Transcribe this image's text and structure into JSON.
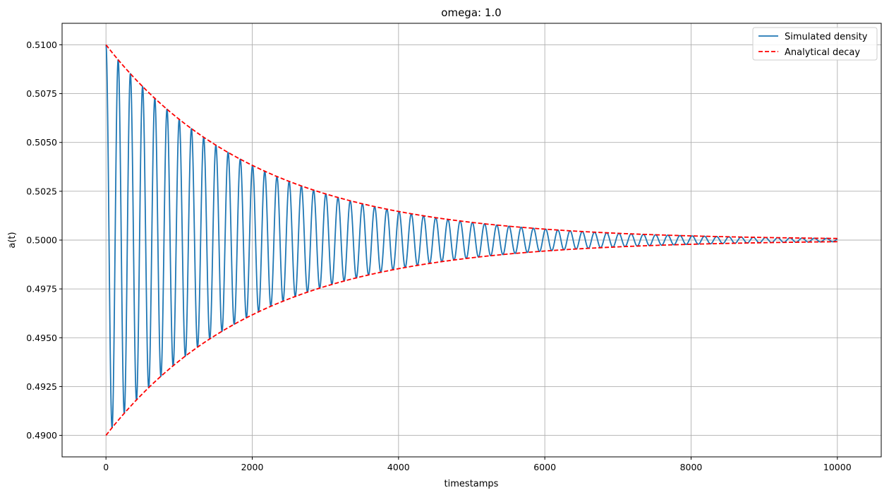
{
  "chart_data": {
    "type": "line",
    "title": "omega: 1.0",
    "xlabel": "timestamps",
    "ylabel": "a(t)",
    "xlim": [
      -600,
      10600
    ],
    "ylim": [
      0.4889,
      0.5111
    ],
    "xticks": [
      0,
      2000,
      4000,
      6000,
      8000,
      10000
    ],
    "xtick_labels": [
      "0",
      "2000",
      "4000",
      "6000",
      "8000",
      "10000"
    ],
    "yticks": [
      0.49,
      0.4925,
      0.495,
      0.4975,
      0.5,
      0.5025,
      0.505,
      0.5075,
      0.51
    ],
    "ytick_labels": [
      "0.4900",
      "0.4925",
      "0.4950",
      "0.4975",
      "0.5000",
      "0.5025",
      "0.5050",
      "0.5075",
      "0.5100"
    ],
    "grid": true,
    "legend_position": "top-right",
    "colors": {
      "simulated": "#1f77b4",
      "analytical": "#ff0000",
      "grid": "#b0b0b0",
      "axes": "#000000"
    },
    "series": [
      {
        "name": "Simulated density",
        "style": "solid",
        "model": {
          "base": 0.5,
          "amplitude": 0.01,
          "decay_rate": 0.00048,
          "period": 167,
          "phase": "cosine"
        },
        "peaks": [
          {
            "x": 0,
            "y": 0.51
          },
          {
            "x": 167,
            "y": 0.5092
          },
          {
            "x": 334,
            "y": 0.5085
          },
          {
            "x": 501,
            "y": 0.5079
          },
          {
            "x": 668,
            "y": 0.5072
          },
          {
            "x": 835,
            "y": 0.5067
          },
          {
            "x": 1002,
            "y": 0.5062
          },
          {
            "x": 1500,
            "y": 0.5049
          },
          {
            "x": 2000,
            "y": 0.5038
          },
          {
            "x": 3000,
            "y": 0.5024
          },
          {
            "x": 4000,
            "y": 0.5015
          },
          {
            "x": 6000,
            "y": 0.5006
          },
          {
            "x": 8000,
            "y": 0.5002
          },
          {
            "x": 10000,
            "y": 0.5001
          }
        ],
        "troughs": [
          {
            "x": 84,
            "y": 0.4904
          },
          {
            "x": 250,
            "y": 0.4911
          },
          {
            "x": 418,
            "y": 0.4918
          },
          {
            "x": 585,
            "y": 0.4925
          },
          {
            "x": 1000,
            "y": 0.4938
          },
          {
            "x": 2000,
            "y": 0.4962
          },
          {
            "x": 4000,
            "y": 0.4985
          },
          {
            "x": 6000,
            "y": 0.4994
          },
          {
            "x": 10000,
            "y": 0.4999
          }
        ]
      },
      {
        "name": "Analytical decay",
        "style": "dashed",
        "model": {
          "base": 0.5,
          "amplitude": 0.01,
          "decay_rate": 0.00048
        },
        "upper": [
          {
            "x": 0,
            "y": 0.51
          },
          {
            "x": 1000,
            "y": 0.5062
          },
          {
            "x": 2000,
            "y": 0.5038
          },
          {
            "x": 3000,
            "y": 0.5024
          },
          {
            "x": 4000,
            "y": 0.5015
          },
          {
            "x": 5000,
            "y": 0.5009
          },
          {
            "x": 6000,
            "y": 0.5006
          },
          {
            "x": 8000,
            "y": 0.5002
          },
          {
            "x": 10000,
            "y": 0.5001
          }
        ],
        "lower": [
          {
            "x": 0,
            "y": 0.49
          },
          {
            "x": 1000,
            "y": 0.4938
          },
          {
            "x": 2000,
            "y": 0.4962
          },
          {
            "x": 3000,
            "y": 0.4976
          },
          {
            "x": 4000,
            "y": 0.4985
          },
          {
            "x": 5000,
            "y": 0.4991
          },
          {
            "x": 6000,
            "y": 0.4994
          },
          {
            "x": 8000,
            "y": 0.4998
          },
          {
            "x": 10000,
            "y": 0.4999
          }
        ]
      }
    ]
  }
}
